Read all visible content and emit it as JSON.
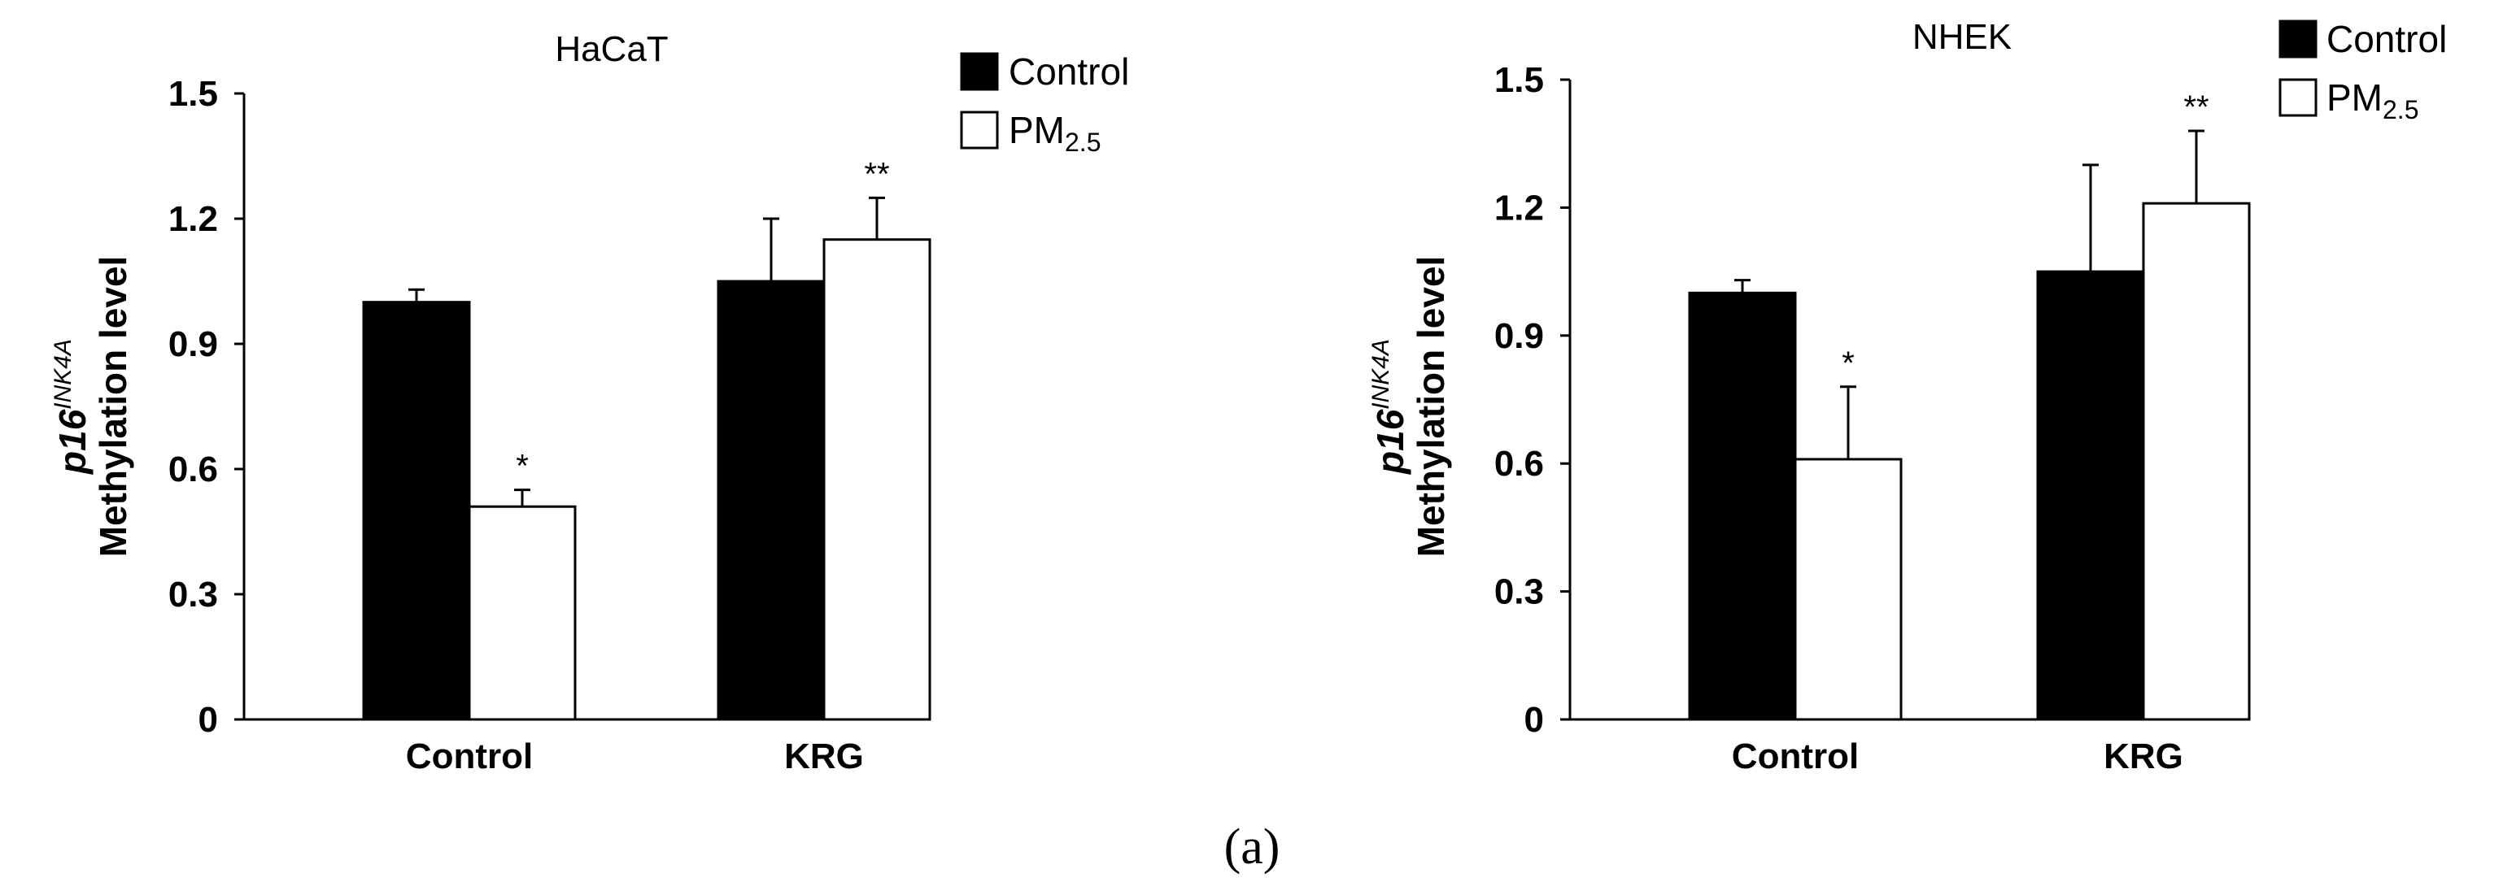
{
  "chart_data": [
    {
      "type": "bar",
      "title": "HaCaT",
      "ylabel_gene": "p16",
      "ylabel_gene_superscript": "INK4A",
      "ylabel": "Methylation level",
      "xlabel": "",
      "categories": [
        "Control",
        "KRG"
      ],
      "ylim": [
        0,
        1.5
      ],
      "yticks": [
        0,
        0.3,
        0.6,
        0.9,
        1.2,
        1.5
      ],
      "ytick_labels": [
        "0",
        "0.3",
        "0.6",
        "0.9",
        "1.2",
        "1.5"
      ],
      "series": [
        {
          "name": "Control",
          "fill": "#000000",
          "values": [
            1.0,
            1.05
          ],
          "errors": [
            0.03,
            0.15
          ]
        },
        {
          "name": "PM2.5",
          "fill": "#ffffff",
          "values": [
            0.51,
            1.15
          ],
          "errors": [
            0.04,
            0.1
          ]
        }
      ],
      "significance": [
        {
          "series": 1,
          "category": 0,
          "label": "*"
        },
        {
          "series": 1,
          "category": 1,
          "label": "**"
        }
      ],
      "legend": [
        {
          "label": "Control",
          "subscript": "",
          "fill": "#000000"
        },
        {
          "label": "PM",
          "subscript": "2.5",
          "fill": "#ffffff"
        }
      ],
      "legend_position": "top-right"
    },
    {
      "type": "bar",
      "title": "NHEK",
      "ylabel_gene": "p16",
      "ylabel_gene_superscript": "INK4A",
      "ylabel": "Methylation level",
      "xlabel": "",
      "categories": [
        "Control",
        "KRG"
      ],
      "ylim": [
        0,
        1.5
      ],
      "yticks": [
        0,
        0.3,
        0.6,
        0.9,
        1.2,
        1.5
      ],
      "ytick_labels": [
        "0",
        "0.3",
        "0.6",
        "0.9",
        "1.2",
        "1.5"
      ],
      "series": [
        {
          "name": "Control",
          "fill": "#000000",
          "values": [
            1.0,
            1.05
          ],
          "errors": [
            0.03,
            0.25
          ]
        },
        {
          "name": "PM2.5",
          "fill": "#ffffff",
          "values": [
            0.61,
            1.21
          ],
          "errors": [
            0.17,
            0.17
          ]
        }
      ],
      "significance": [
        {
          "series": 1,
          "category": 0,
          "label": "*"
        },
        {
          "series": 1,
          "category": 1,
          "label": "**"
        }
      ],
      "legend": [
        {
          "label": "Control",
          "subscript": "",
          "fill": "#000000"
        },
        {
          "label": "PM",
          "subscript": "2.5",
          "fill": "#ffffff"
        }
      ],
      "legend_position": "top-right"
    }
  ],
  "figure": {
    "panel_label": "(a)"
  }
}
